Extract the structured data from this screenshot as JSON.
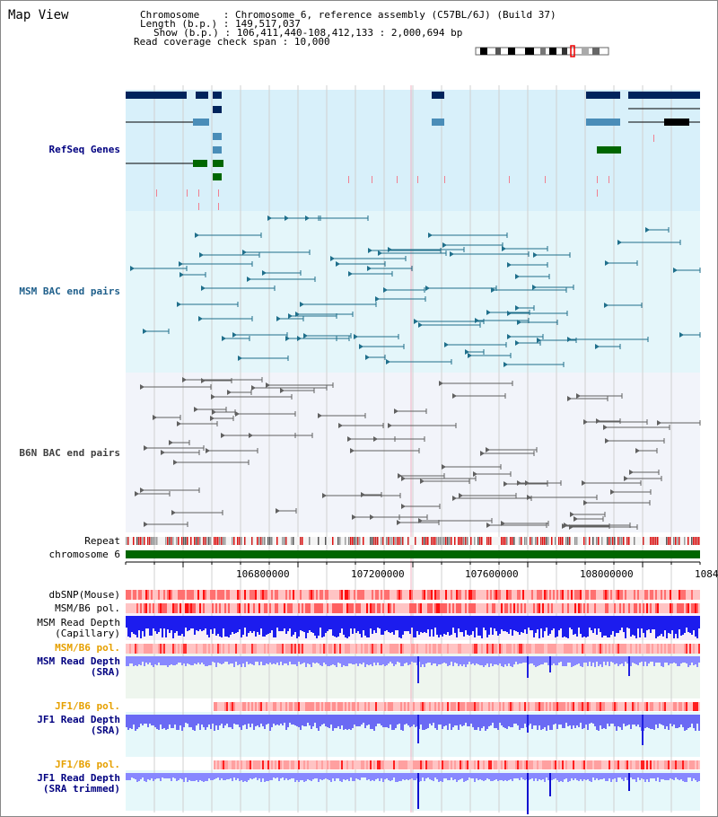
{
  "title": "Map View",
  "info": {
    "chromosome_label": "Chromosome",
    "chromosome_value": "Chromosome 6, reference assembly (C57BL/6J) (Build 37)",
    "length_label": "Length (b.p.)",
    "length_value": "149,517,037",
    "show_label": "Show (b.p.)",
    "show_value": "106,411,440-108,412,133 : 2,000,694 bp",
    "coverage_label": "Read coverage check span",
    "coverage_value": "10,000"
  },
  "tracks": {
    "refseq": "RefSeq Genes",
    "msm_bac": "MSM BAC end pairs",
    "b6n_bac": "B6N BAC end pairs",
    "repeat": "Repeat",
    "chromosome": "chromosome 6",
    "dbsnp": "dbSNP(Mouse)",
    "msm_b6_pol": "MSM/B6 pol.",
    "msm_read_depth_cap_1": "MSM Read Depth",
    "msm_read_depth_cap_2": "(Capillary)",
    "msm_b6_pol_2": "MSM/B6 pol.",
    "msm_read_depth_sra_1": "MSM Read Depth",
    "msm_read_depth_sra_2": "(SRA)",
    "jf1_b6_pol": "JF1/B6 pol.",
    "jf1_read_depth_1": "JF1 Read Depth",
    "jf1_read_depth_2": "(SRA)",
    "jf1_b6_pol_2": "JF1/B6 pol.",
    "jf1_trimmed_1": "JF1 Read Depth",
    "jf1_trimmed_2": "(SRA trimmed)"
  },
  "axis_ticks": [
    "106800000",
    "107200000",
    "107600000",
    "108000000",
    "1084"
  ],
  "colors": {
    "refseq_bg": "#d8f0fa",
    "msm_bg": "#e4f6fa",
    "b6n_bg": "#f2f4fa",
    "gene_dark": "#00245c",
    "gene_mid": "#4a8db8",
    "gene_green": "#006600",
    "bac_teal": "#1f6f8b",
    "bac_gray": "#606060",
    "chromosome_bar": "#006600",
    "snp_red": "#ff3030",
    "depth_blue": "#1010ff",
    "depth_light": "#8888ff"
  }
}
